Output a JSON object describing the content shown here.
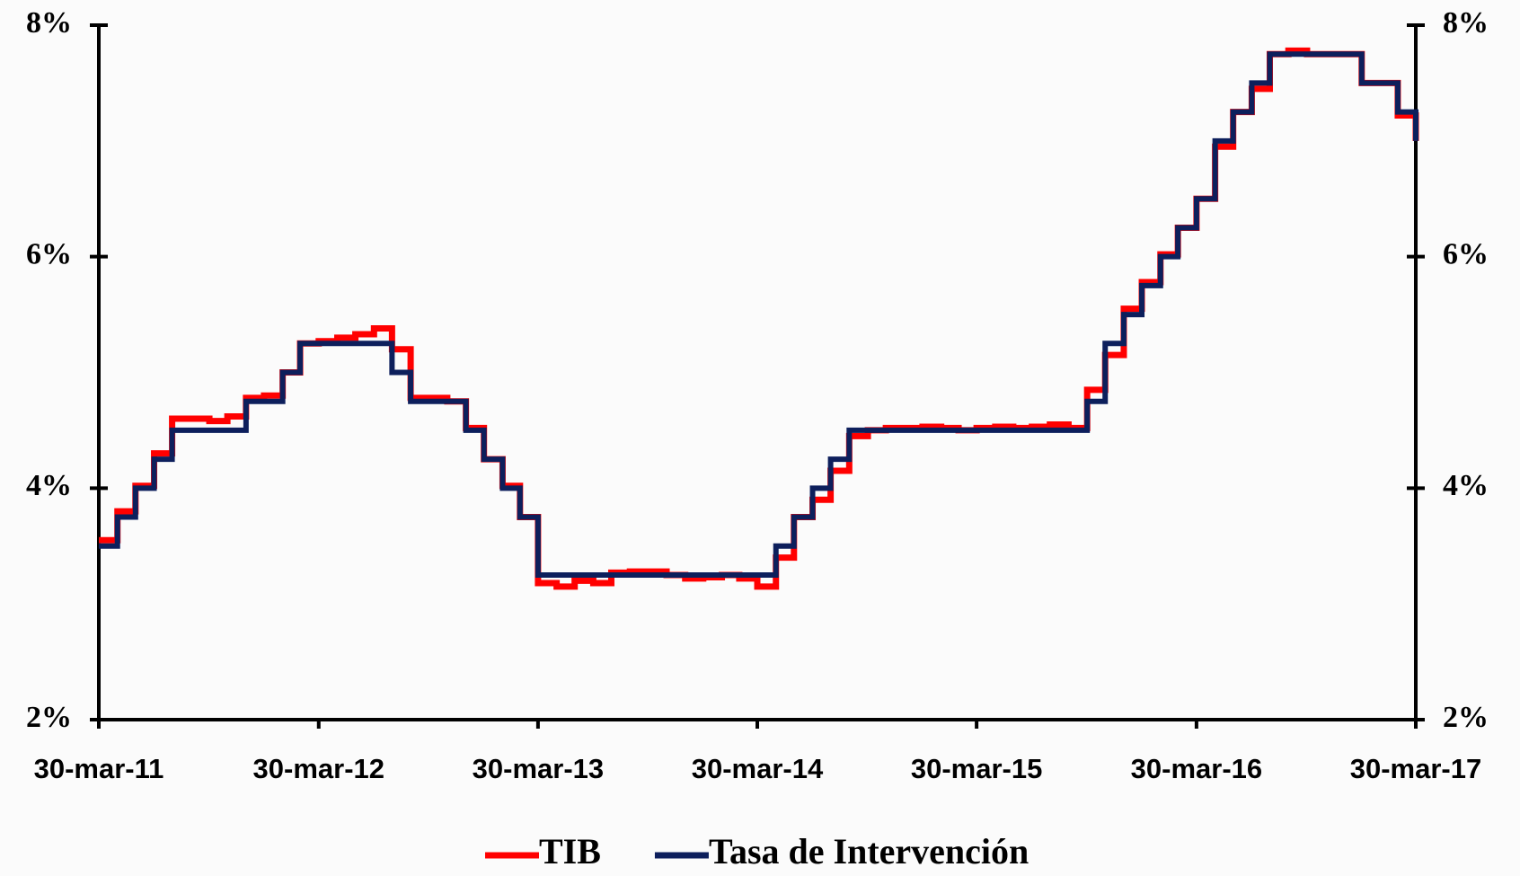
{
  "chart_data": {
    "type": "line",
    "step": true,
    "x": [
      "2011-03-30",
      "2011-04-30",
      "2011-05-30",
      "2011-06-30",
      "2011-07-30",
      "2011-08-30",
      "2011-09-30",
      "2011-10-30",
      "2011-11-30",
      "2011-12-30",
      "2012-01-30",
      "2012-02-28",
      "2012-03-30",
      "2012-04-30",
      "2012-05-30",
      "2012-06-30",
      "2012-07-30",
      "2012-08-30",
      "2012-09-30",
      "2012-10-30",
      "2012-11-30",
      "2012-12-30",
      "2013-01-30",
      "2013-02-28",
      "2013-03-30",
      "2013-04-30",
      "2013-05-30",
      "2013-06-30",
      "2013-07-30",
      "2013-08-30",
      "2013-09-30",
      "2013-10-30",
      "2013-11-30",
      "2013-12-30",
      "2014-01-30",
      "2014-02-28",
      "2014-03-30",
      "2014-04-30",
      "2014-05-30",
      "2014-06-30",
      "2014-07-30",
      "2014-08-30",
      "2014-09-30",
      "2014-10-30",
      "2014-11-30",
      "2014-12-30",
      "2015-01-30",
      "2015-02-28",
      "2015-03-30",
      "2015-04-30",
      "2015-05-30",
      "2015-06-30",
      "2015-07-30",
      "2015-08-30",
      "2015-09-30",
      "2015-10-30",
      "2015-11-30",
      "2015-12-30",
      "2016-01-30",
      "2016-02-28",
      "2016-03-30",
      "2016-04-30",
      "2016-05-30",
      "2016-06-30",
      "2016-07-30",
      "2016-08-30",
      "2016-09-30",
      "2016-10-30",
      "2016-11-30",
      "2016-12-30",
      "2017-01-30",
      "2017-02-28",
      "2017-03-30"
    ],
    "series": [
      {
        "name": "TIB",
        "color": "#ff0000",
        "values": [
          3.55,
          3.8,
          4.02,
          4.3,
          4.6,
          4.6,
          4.58,
          4.62,
          4.78,
          4.8,
          5.0,
          5.25,
          5.27,
          5.3,
          5.33,
          5.38,
          5.2,
          4.78,
          4.78,
          4.75,
          4.52,
          4.25,
          4.02,
          3.75,
          3.18,
          3.15,
          3.2,
          3.18,
          3.27,
          3.28,
          3.28,
          3.25,
          3.22,
          3.23,
          3.25,
          3.22,
          3.15,
          3.4,
          3.75,
          3.9,
          4.15,
          4.45,
          4.5,
          4.52,
          4.52,
          4.53,
          4.52,
          4.5,
          4.52,
          4.53,
          4.52,
          4.53,
          4.55,
          4.52,
          4.85,
          5.15,
          5.55,
          5.78,
          6.02,
          6.25,
          6.5,
          6.95,
          7.25,
          7.45,
          7.75,
          7.78,
          7.75,
          7.75,
          7.75,
          7.5,
          7.5,
          7.22,
          7.0
        ]
      },
      {
        "name": "Tasa de Intervención",
        "color": "#0d1f5c",
        "values": [
          3.5,
          3.75,
          4.0,
          4.25,
          4.5,
          4.5,
          4.5,
          4.5,
          4.75,
          4.75,
          5.0,
          5.25,
          5.25,
          5.25,
          5.25,
          5.25,
          5.0,
          4.75,
          4.75,
          4.75,
          4.5,
          4.25,
          4.0,
          3.75,
          3.25,
          3.25,
          3.25,
          3.25,
          3.25,
          3.25,
          3.25,
          3.25,
          3.25,
          3.25,
          3.25,
          3.25,
          3.25,
          3.5,
          3.75,
          4.0,
          4.25,
          4.5,
          4.5,
          4.5,
          4.5,
          4.5,
          4.5,
          4.5,
          4.5,
          4.5,
          4.5,
          4.5,
          4.5,
          4.5,
          4.75,
          5.25,
          5.5,
          5.75,
          6.0,
          6.25,
          6.5,
          7.0,
          7.25,
          7.5,
          7.75,
          7.75,
          7.75,
          7.75,
          7.75,
          7.5,
          7.5,
          7.25,
          7.0
        ]
      }
    ],
    "xlim": [
      "2011-03-30",
      "2017-03-30"
    ],
    "xticks": [
      {
        "value": "2011-03-30",
        "label": "30-mar-11"
      },
      {
        "value": "2012-03-30",
        "label": "30-mar-12"
      },
      {
        "value": "2013-03-30",
        "label": "30-mar-13"
      },
      {
        "value": "2014-03-30",
        "label": "30-mar-14"
      },
      {
        "value": "2015-03-30",
        "label": "30-mar-15"
      },
      {
        "value": "2016-03-30",
        "label": "30-mar-16"
      },
      {
        "value": "2017-03-30",
        "label": "30-mar-17"
      }
    ],
    "ylim": [
      2,
      8
    ],
    "yticks": [
      {
        "value": 2,
        "label": "2%"
      },
      {
        "value": 4,
        "label": "4%"
      },
      {
        "value": 6,
        "label": "6%"
      },
      {
        "value": 8,
        "label": "8%"
      }
    ],
    "y2lim": [
      2,
      8
    ],
    "y2ticks": [
      {
        "value": 2,
        "label": "2%"
      },
      {
        "value": 4,
        "label": "4%"
      },
      {
        "value": 6,
        "label": "6%"
      },
      {
        "value": 8,
        "label": "8%"
      }
    ],
    "legend": "bottom"
  }
}
